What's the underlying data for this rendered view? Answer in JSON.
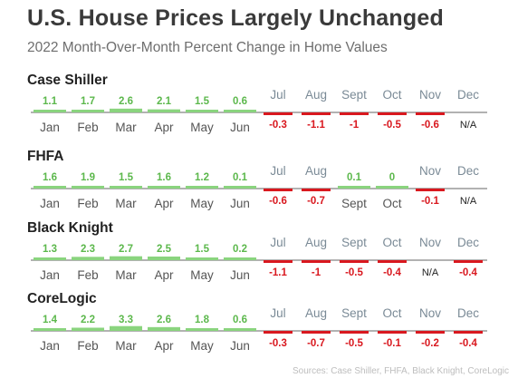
{
  "title": "U.S. House Prices Largely Unchanged",
  "subtitle": "2022 Month-Over-Month Percent Change in Home Values",
  "source": "Sources: Case Shiller, FHFA, Black Knight, CoreLogic",
  "colors": {
    "positive_bar": "#8ad47e",
    "positive_label": "#5cb84c",
    "negative_bar": "#d9181f",
    "negative_label": "#d9181f",
    "month_label": "#555555",
    "month_label_secondary": "#7a8a96",
    "na_label": "#222222",
    "baseline": "#333333"
  },
  "chart_data": [
    {
      "type": "bar",
      "title": "Case Shiller",
      "categories": [
        "Jan",
        "Feb",
        "Mar",
        "Apr",
        "May",
        "Jun",
        "Jul",
        "Aug",
        "Sept",
        "Oct",
        "Nov",
        "Dec"
      ],
      "values": [
        1.1,
        1.7,
        2.6,
        2.1,
        1.5,
        0.6,
        -0.3,
        -1.1,
        -1,
        -0.5,
        -0.6,
        null
      ],
      "data_labels": [
        "1.1",
        "1.7",
        "2.6",
        "2.1",
        "1.5",
        "0.6",
        "-0.3",
        "-1.1",
        "-1",
        "-0.5",
        "-0.6",
        "N/A"
      ],
      "ylim": [
        -3.5,
        3.5
      ],
      "grid": false
    },
    {
      "type": "bar",
      "title": "FHFA",
      "categories": [
        "Jan",
        "Feb",
        "Mar",
        "Apr",
        "May",
        "Jun",
        "Jul",
        "Aug",
        "Sept",
        "Oct",
        "Nov",
        "Dec"
      ],
      "values": [
        1.6,
        1.9,
        1.5,
        1.6,
        1.2,
        0.1,
        -0.6,
        -0.7,
        0.1,
        0,
        -0.1,
        null
      ],
      "data_labels": [
        "1.6",
        "1.9",
        "1.5",
        "1.6",
        "1.2",
        "0.1",
        "-0.6",
        "-0.7",
        "0.1",
        "0",
        "-0.1",
        "N/A"
      ],
      "ylim": [
        -3.5,
        3.5
      ],
      "grid": false
    },
    {
      "type": "bar",
      "title": "Black Knight",
      "categories": [
        "Jan",
        "Feb",
        "Mar",
        "Apr",
        "May",
        "Jun",
        "Jul",
        "Aug",
        "Sept",
        "Oct",
        "Nov",
        "Dec"
      ],
      "values": [
        1.3,
        2.3,
        2.7,
        2.5,
        1.5,
        0.2,
        -1.1,
        -1,
        -0.5,
        -0.4,
        null,
        -0.4
      ],
      "data_labels": [
        "1.3",
        "2.3",
        "2.7",
        "2.5",
        "1.5",
        "0.2",
        "-1.1",
        "-1",
        "-0.5",
        "-0.4",
        "N/A",
        "-0.4"
      ],
      "ylim": [
        -3.5,
        3.5
      ],
      "grid": false
    },
    {
      "type": "bar",
      "title": "CoreLogic",
      "categories": [
        "Jan",
        "Feb",
        "Mar",
        "Apr",
        "May",
        "Jun",
        "Jul",
        "Aug",
        "Sept",
        "Oct",
        "Nov",
        "Dec"
      ],
      "values": [
        1.4,
        2.2,
        3.3,
        2.6,
        1.8,
        0.6,
        -0.3,
        -0.7,
        -0.5,
        -0.1,
        -0.2,
        -0.4
      ],
      "data_labels": [
        "1.4",
        "2.2",
        "3.3",
        "2.6",
        "1.8",
        "0.6",
        "-0.3",
        "-0.7",
        "-0.5",
        "-0.1",
        "-0.2",
        "-0.4"
      ],
      "ylim": [
        -3.5,
        3.5
      ],
      "grid": false
    }
  ]
}
